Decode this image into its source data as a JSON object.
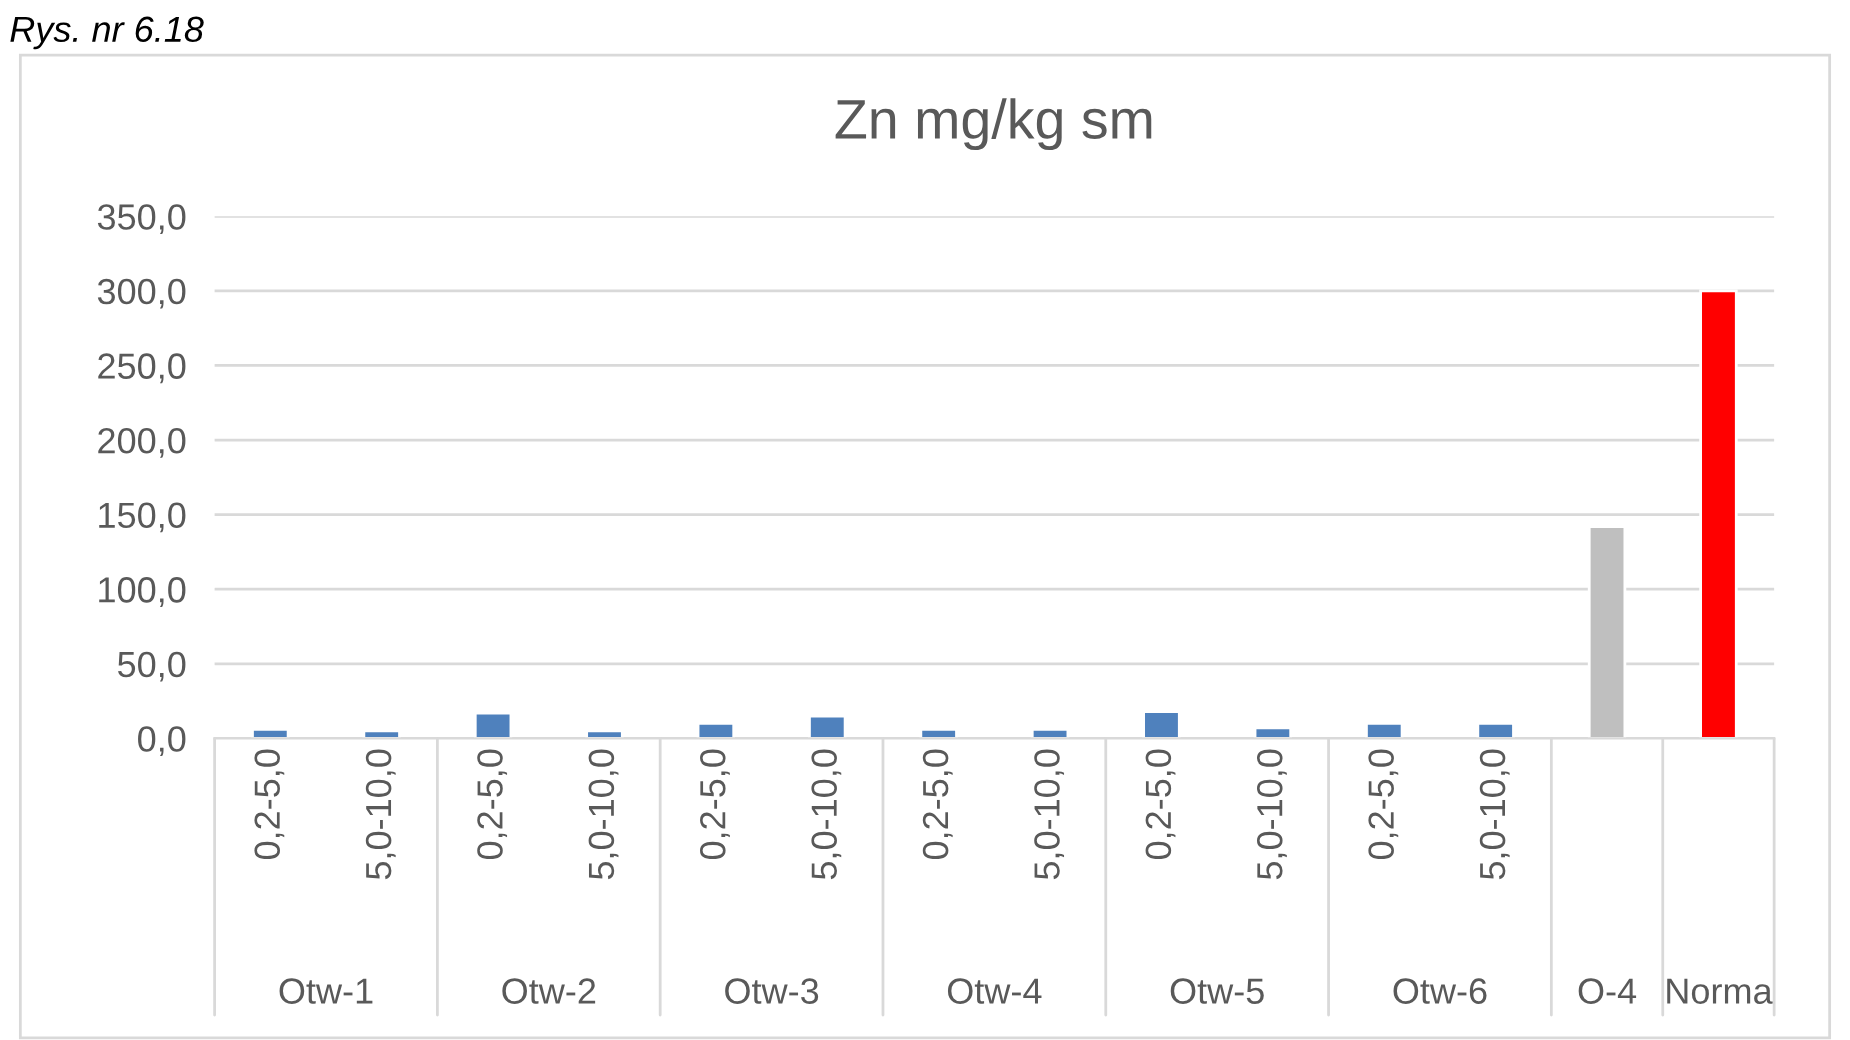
{
  "chart_data": {
    "type": "bar",
    "title": "Zn mg/kg sm",
    "categories": [
      "0,2-5,0",
      "5,0-10,0",
      "0,2-5,0",
      "5,0-10,0",
      "0,2-5,0",
      "5,0-10,0",
      "0,2-5,0",
      "5,0-10,0",
      "0,2-5,0",
      "5,0-10,0",
      "0,2-5,0",
      "5,0-10,0",
      null,
      null
    ],
    "values": [
      6,
      5,
      17,
      5,
      10,
      15,
      6,
      6,
      18,
      7,
      10,
      10,
      142,
      300
    ],
    "colors": [
      "#4f81bd",
      "#4f81bd",
      "#4f81bd",
      "#4f81bd",
      "#4f81bd",
      "#4f81bd",
      "#4f81bd",
      "#4f81bd",
      "#4f81bd",
      "#4f81bd",
      "#4f81bd",
      "#4f81bd",
      "#bfbfbf",
      "#ff0000"
    ],
    "ylim": [
      0,
      350
    ],
    "yticks": [
      {
        "value": 0,
        "label": "0,0"
      },
      {
        "value": 50,
        "label": "50,0"
      },
      {
        "value": 100,
        "label": "100,0"
      },
      {
        "value": 150,
        "label": "150,0"
      },
      {
        "value": 200,
        "label": "200,0"
      },
      {
        "value": 250,
        "label": "250,0"
      },
      {
        "value": 300,
        "label": "300,0"
      },
      {
        "value": 350,
        "label": "350,0"
      }
    ],
    "grid": "y",
    "annotations": [
      "Rys. nr 6.18",
      "Otw-1",
      "Otw-2",
      "Otw-3",
      "Otw-4",
      "Otw-5",
      "Otw-6",
      "O-4",
      "Norma"
    ]
  }
}
